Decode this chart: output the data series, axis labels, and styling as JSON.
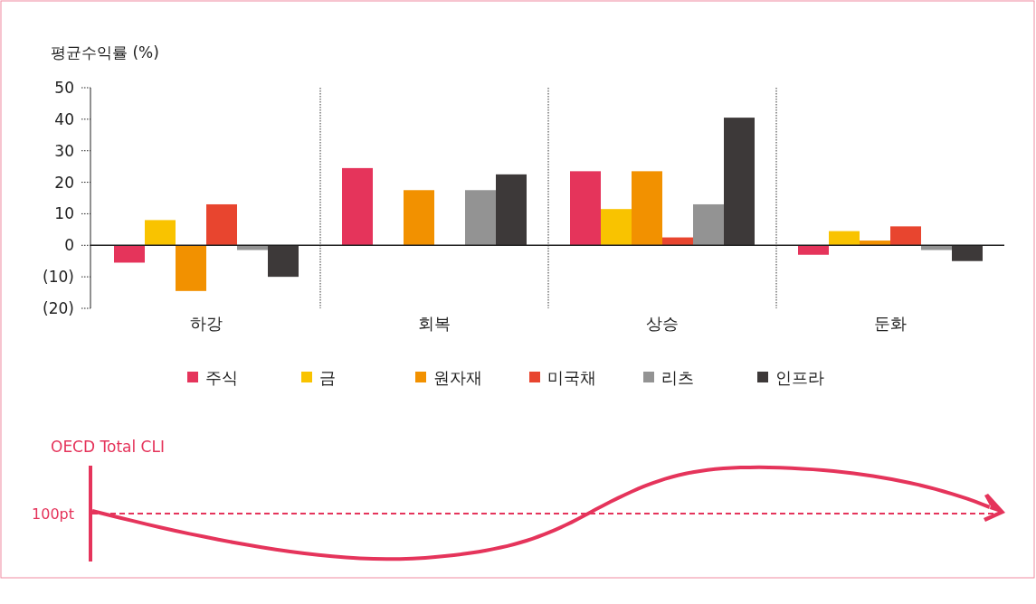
{
  "chart_data": {
    "type": "bar",
    "ylabel": "평균수익률 (%)",
    "categories": [
      "하강",
      "회복",
      "상승",
      "둔화"
    ],
    "series": [
      {
        "name": "주식",
        "color": "#e5345b",
        "values": [
          -5.5,
          24.5,
          23.5,
          -3
        ]
      },
      {
        "name": "금",
        "color": "#f9c300",
        "values": [
          8,
          null,
          11.5,
          4.5
        ]
      },
      {
        "name": "원자재",
        "color": "#f29100",
        "values": [
          -14.5,
          17.5,
          23.5,
          1.5
        ]
      },
      {
        "name": "미국채",
        "color": "#e8452f",
        "values": [
          13,
          null,
          2.5,
          6
        ]
      },
      {
        "name": "리츠",
        "color": "#939393",
        "values": [
          -1.5,
          17.5,
          13,
          -1.5
        ]
      },
      {
        "name": "인프라",
        "color": "#3d3939",
        "values": [
          -10,
          22.5,
          40.5,
          -5
        ]
      }
    ],
    "ylim": [
      -20,
      50
    ],
    "yticks": [
      50,
      40,
      30,
      20,
      10,
      0,
      {
        "value": -10,
        "label": "(10)"
      },
      {
        "value": -20,
        "label": "(20)"
      }
    ],
    "legend": "bottom",
    "annotations": [
      "OECD Total CLI",
      "100pt"
    ]
  }
}
